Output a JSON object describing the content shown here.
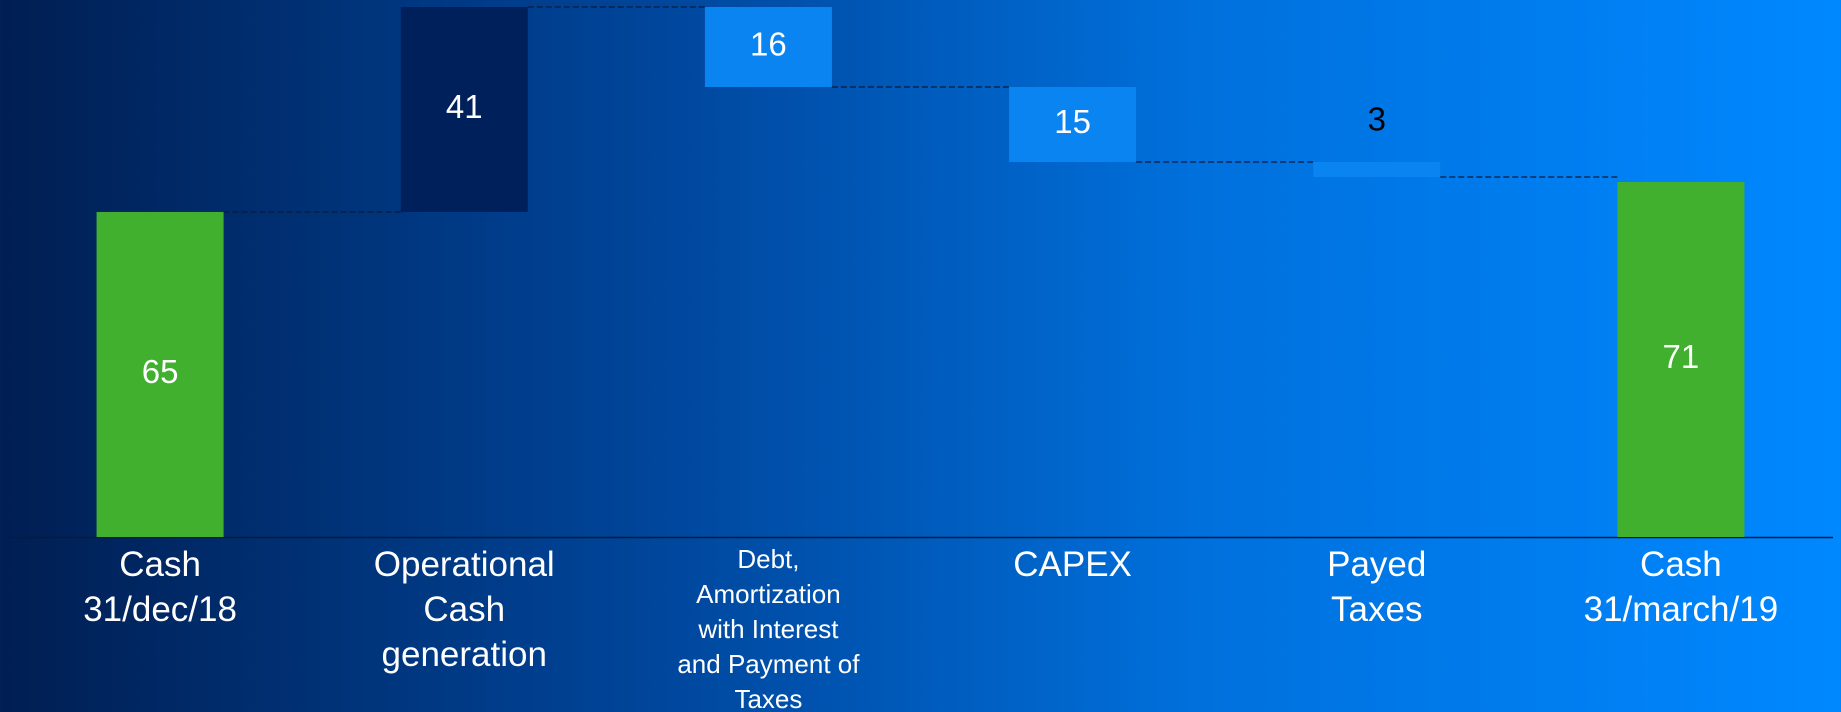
{
  "chart_data": {
    "type": "waterfall",
    "categories": [
      "Cash\n31/dec/18",
      "Operational\nCash\ngeneration",
      "Debt,\nAmortization\nwith Interest\nand Payment of\nTaxes",
      "CAPEX",
      "Payed\nTaxes",
      "Cash\n31/march/19"
    ],
    "values": [
      65,
      41,
      16,
      15,
      3,
      71
    ],
    "measure": [
      "absolute",
      "increase",
      "decrease",
      "decrease",
      "decrease",
      "total"
    ],
    "colors": {
      "absolute": "#41b02f",
      "total": "#41b02f",
      "increase": "#00205b",
      "decrease": "#0a84f0"
    }
  }
}
